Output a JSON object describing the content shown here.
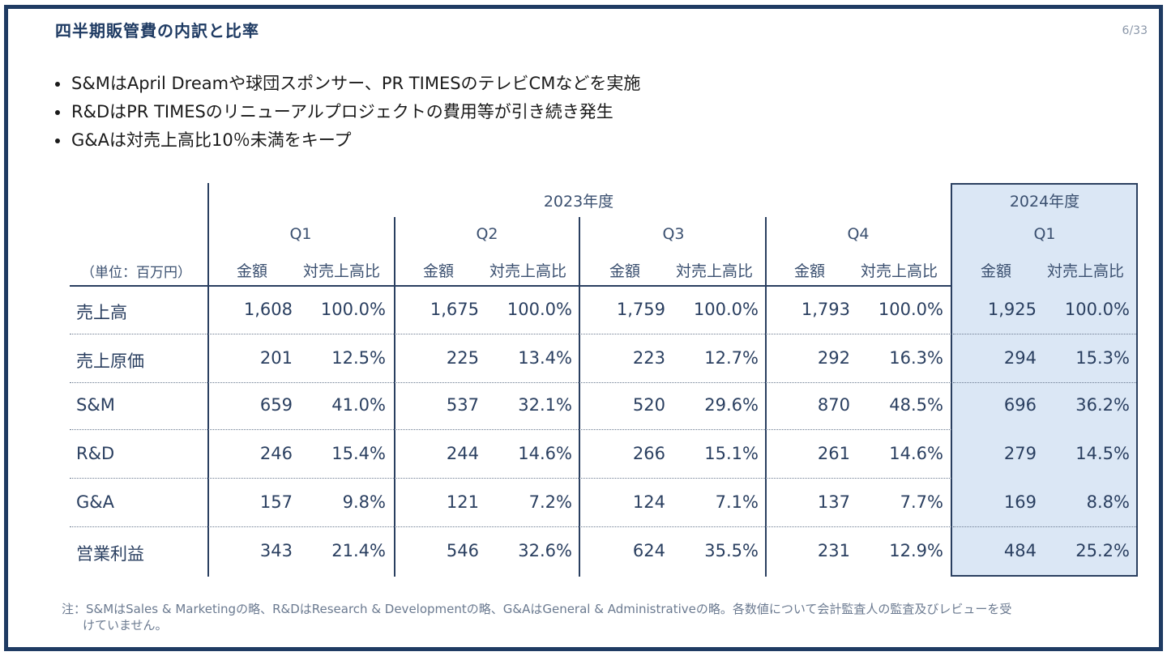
{
  "page": {
    "title": "四半期販管費の内訳と比率",
    "page_number": "6/33"
  },
  "bullets": [
    "S&MはApril Dreamや球団スポンサー、PR TIMESのテレビCMなどを実施",
    "R&DはPR TIMESのリニューアルプロジェクトの費用等が引き続き発生",
    "G&Aは対売上高比10％未満をキープ"
  ],
  "table": {
    "year_2023": "2023年度",
    "year_2024": "2024年度",
    "unit_label": "（単位：百万円）",
    "quarters": [
      "Q1",
      "Q2",
      "Q3",
      "Q4",
      "Q1"
    ],
    "col_amount": "金額",
    "col_ratio": "対売上高比",
    "rows": [
      {
        "label": "売上高",
        "values": [
          [
            "1,608",
            "100.0%"
          ],
          [
            "1,675",
            "100.0%"
          ],
          [
            "1,759",
            "100.0%"
          ],
          [
            "1,793",
            "100.0%"
          ],
          [
            "1,925",
            "100.0%"
          ]
        ]
      },
      {
        "label": "売上原価",
        "values": [
          [
            "201",
            "12.5%"
          ],
          [
            "225",
            "13.4%"
          ],
          [
            "223",
            "12.7%"
          ],
          [
            "292",
            "16.3%"
          ],
          [
            "294",
            "15.3%"
          ]
        ]
      },
      {
        "label": "S&M",
        "values": [
          [
            "659",
            "41.0%"
          ],
          [
            "537",
            "32.1%"
          ],
          [
            "520",
            "29.6%"
          ],
          [
            "870",
            "48.5%"
          ],
          [
            "696",
            "36.2%"
          ]
        ]
      },
      {
        "label": "R&D",
        "values": [
          [
            "246",
            "15.4%"
          ],
          [
            "244",
            "14.6%"
          ],
          [
            "266",
            "15.1%"
          ],
          [
            "261",
            "14.6%"
          ],
          [
            "279",
            "14.5%"
          ]
        ]
      },
      {
        "label": "G&A",
        "values": [
          [
            "157",
            "9.8%"
          ],
          [
            "121",
            "7.2%"
          ],
          [
            "124",
            "7.1%"
          ],
          [
            "137",
            "7.7%"
          ],
          [
            "169",
            "8.8%"
          ]
        ]
      },
      {
        "label": "営業利益",
        "values": [
          [
            "343",
            "21.4%"
          ],
          [
            "546",
            "32.6%"
          ],
          [
            "624",
            "35.5%"
          ],
          [
            "231",
            "12.9%"
          ],
          [
            "484",
            "25.2%"
          ]
        ]
      }
    ]
  },
  "note": {
    "line1": "注：S&MはSales & Marketingの略、R&DはResearch & Developmentの略、G&AはGeneral & Administrativeの略。各数値について会計監査人の監査及びレビューを受",
    "line2": "けていません。"
  }
}
